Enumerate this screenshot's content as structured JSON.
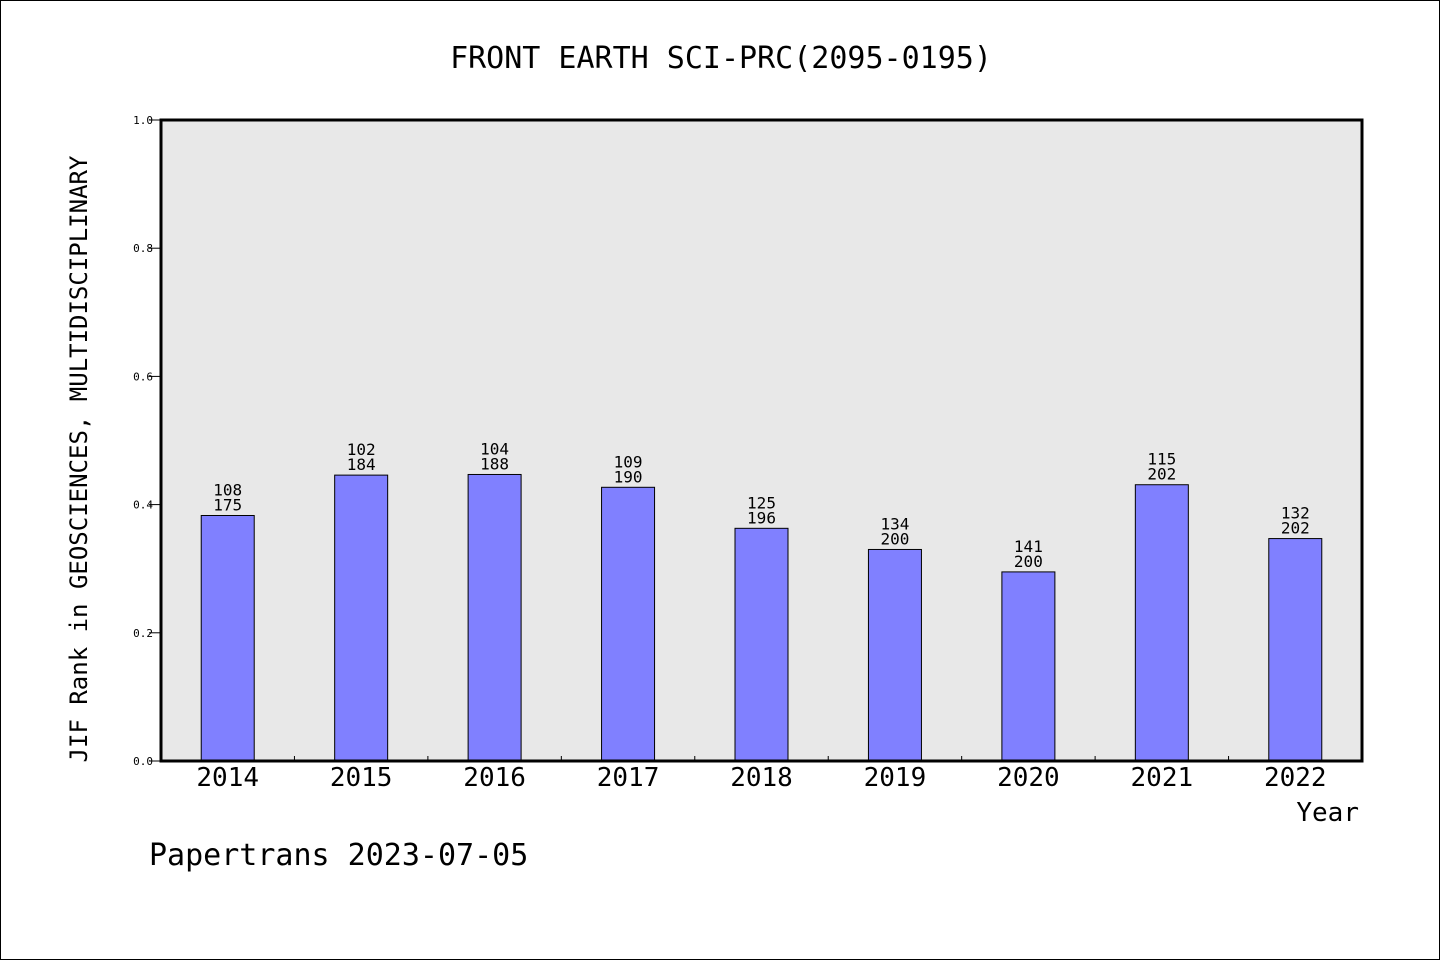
{
  "chart_data": {
    "type": "bar",
    "title": "FRONT EARTH SCI-PRC(2095-0195)",
    "xlabel": "Year",
    "ylabel": "JIF Rank in GEOSCIENCES, MULTIDISCIPLINARY",
    "ylim": [
      0,
      1
    ],
    "yticks": [
      "0.0",
      "0.2",
      "0.4",
      "0.6",
      "0.8",
      "1.0"
    ],
    "categories": [
      "2014",
      "2015",
      "2016",
      "2017",
      "2018",
      "2019",
      "2020",
      "2021",
      "2022"
    ],
    "values": [
      0.383,
      0.446,
      0.447,
      0.427,
      0.363,
      0.33,
      0.295,
      0.431,
      0.347
    ],
    "rank": [
      "108",
      "102",
      "104",
      "109",
      "125",
      "134",
      "141",
      "115",
      "132"
    ],
    "total": [
      "175",
      "184",
      "188",
      "190",
      "196",
      "200",
      "200",
      "202",
      "202"
    ],
    "grid": false,
    "bar_color": "#8080ff",
    "plot_background": "#e8e8e8"
  },
  "footer": {
    "credit": "Papertrans 2023-07-05"
  }
}
